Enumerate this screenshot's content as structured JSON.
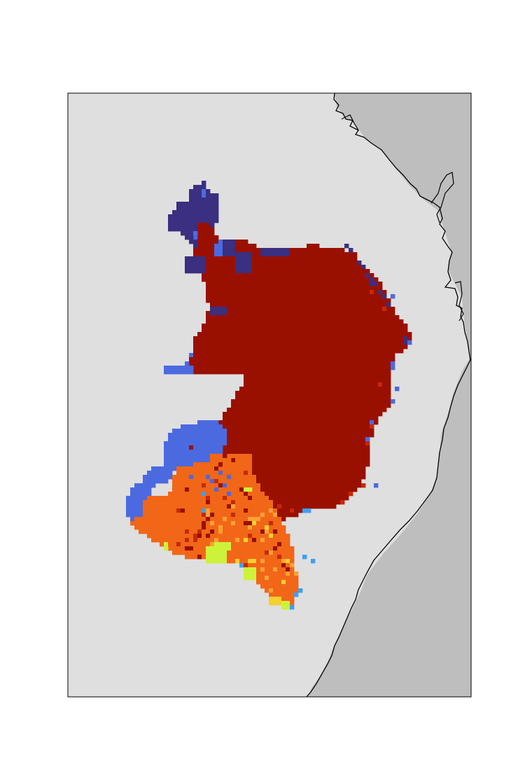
{
  "map": {
    "colors": {
      "page": "#ffffff",
      "land_background": "#dfdfdf",
      "ocean": "#bebebe",
      "coastline": "#000000",
      "frame": "#000000",
      "class_dark_navy": "#3a2f80",
      "class_royal_blue": "#4b6ae0",
      "class_sky_blue": "#3ea0f0",
      "class_dark_red": "#9a1000",
      "class_red": "#c42a08",
      "class_orange": "#f26618",
      "class_light_orange": "#fca234",
      "class_yellow": "#f4d030",
      "class_lime": "#cdf23a"
    }
  }
}
